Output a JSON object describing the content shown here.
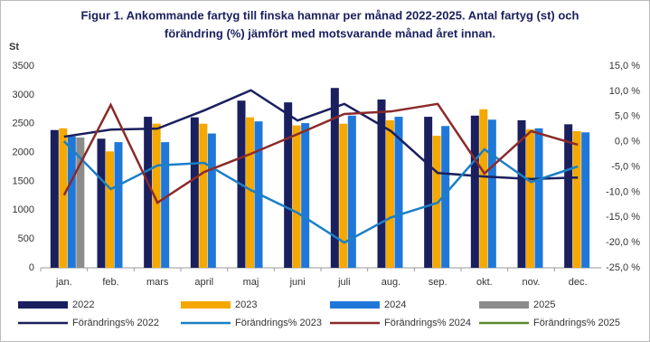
{
  "chart_data": {
    "type": "bar_line",
    "title": "Figur 1. Ankommande fartyg till finska hamnar per månad 2022-2025.  Antal fartyg (st) och",
    "subtitle": "förändring (%) jämfört med motsvarande månad året innan.",
    "y_label": "St",
    "categories": [
      "jan.",
      "feb.",
      "mars",
      "april",
      "maj",
      "juni",
      "juli",
      "aug.",
      "sep.",
      "okt.",
      "nov.",
      "dec."
    ],
    "ylim": [
      0,
      3500
    ],
    "yticks": [
      0,
      500,
      1000,
      1500,
      2000,
      2500,
      3000,
      3500
    ],
    "y2lim": [
      -25,
      15
    ],
    "y2ticks": [
      {
        "value": -25,
        "label": "-25,0 %"
      },
      {
        "value": -20,
        "label": "-20,0 %"
      },
      {
        "value": -15,
        "label": "-15,0 %"
      },
      {
        "value": -10,
        "label": "-10,0 %"
      },
      {
        "value": -5,
        "label": "-5,0 %"
      },
      {
        "value": 0,
        "label": "0,0 %"
      },
      {
        "value": 5,
        "label": "5,0 %"
      },
      {
        "value": 10,
        "label": "10,0 %"
      },
      {
        "value": 15,
        "label": "15,0 %"
      }
    ],
    "grid": false,
    "series": [
      {
        "name": "2022",
        "kind": "bar",
        "color": "#1a1f5e",
        "values": [
          2390,
          2240,
          2620,
          2610,
          2900,
          2870,
          3120,
          2920,
          2620,
          2640,
          2560,
          2490
        ]
      },
      {
        "name": "2023",
        "kind": "bar",
        "color": "#f5a800",
        "values": [
          2420,
          2020,
          2500,
          2500,
          2610,
          2470,
          2500,
          2560,
          2290,
          2750,
          2400,
          2370
        ]
      },
      {
        "name": "2024",
        "kind": "bar",
        "color": "#1f78d9",
        "values": [
          2280,
          2180,
          2180,
          2330,
          2540,
          2510,
          2640,
          2620,
          2460,
          2570,
          2420,
          2350
        ]
      },
      {
        "name": "2025",
        "kind": "bar",
        "color": "#8c8c8c",
        "values": [
          2260,
          null,
          null,
          null,
          null,
          null,
          null,
          null,
          null,
          null,
          null,
          null
        ]
      },
      {
        "name": "Förändrings% 2022",
        "kind": "line",
        "axis": "y2",
        "color": "#1a1f5e",
        "values": [
          1.0,
          2.4,
          2.6,
          6.2,
          10.2,
          4.2,
          7.5,
          2.1,
          -6.2,
          -6.9,
          -7.4,
          -7.1
        ]
      },
      {
        "name": "Förändrings% 2023",
        "kind": "line",
        "axis": "y2",
        "color": "#1b7fc6",
        "values": [
          0.1,
          -9.4,
          -4.7,
          -4.2,
          -9.6,
          -14.1,
          -20.0,
          -15.0,
          -12.1,
          -1.5,
          -8.0,
          -4.9
        ]
      },
      {
        "name": "Förändrings% 2024",
        "kind": "line",
        "axis": "y2",
        "color": "#8b2a2a",
        "values": [
          -10.6,
          7.3,
          -12.1,
          -6.0,
          -2.4,
          1.5,
          5.5,
          6.0,
          7.5,
          -6.3,
          2.1,
          -0.6
        ]
      },
      {
        "name": "Förändrings% 2025",
        "kind": "line",
        "axis": "y2",
        "color": "#5a8a2a",
        "values": [
          null,
          null,
          null,
          null,
          null,
          null,
          null,
          null,
          null,
          null,
          null,
          null
        ]
      }
    ]
  }
}
